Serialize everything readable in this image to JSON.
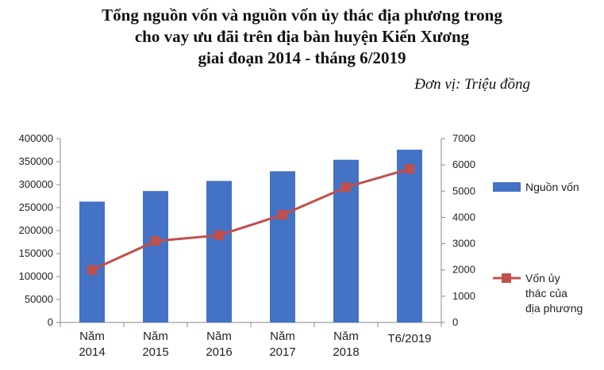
{
  "chart_data": {
    "type": "bar+line",
    "title_lines": [
      "Tổng nguồn vốn và nguồn vốn ủy thác địa phương trong",
      "cho vay ưu  đãi trên địa bàn huyện Kiến Xương",
      "giai đoạn 2014 - tháng 6/2019"
    ],
    "unit": "Đơn vị: Triệu đồng",
    "categories": [
      [
        "Năm",
        "2014"
      ],
      [
        "Năm",
        "2015"
      ],
      [
        "Năm",
        "2016"
      ],
      [
        "Năm",
        "2017"
      ],
      [
        "Năm",
        "2018"
      ],
      [
        "T6/2019"
      ]
    ],
    "series": [
      {
        "name": "Nguồn vốn",
        "type": "bar",
        "axis": "left",
        "color": "#4472C4",
        "values": [
          263000,
          286000,
          308000,
          329000,
          354000,
          376000
        ]
      },
      {
        "name": "Vốn ủy thác của địa phương",
        "name_lines": [
          "Vốn ủy",
          "thác của",
          "địa phương"
        ],
        "type": "line",
        "axis": "right",
        "color": "#C0504D",
        "values": [
          2000,
          3100,
          3320,
          4100,
          5150,
          5850
        ]
      }
    ],
    "y_left": {
      "min": 0,
      "max": 400000,
      "step": 50000,
      "ticks": [
        "0",
        "50000",
        "100000",
        "150000",
        "200000",
        "250000",
        "300000",
        "350000",
        "400000"
      ]
    },
    "y_right": {
      "min": 0,
      "max": 7000,
      "step": 1000,
      "ticks": [
        "0",
        "1000",
        "2000",
        "3000",
        "4000",
        "5000",
        "6000",
        "7000"
      ]
    },
    "grid": false,
    "legend_position": "right"
  }
}
